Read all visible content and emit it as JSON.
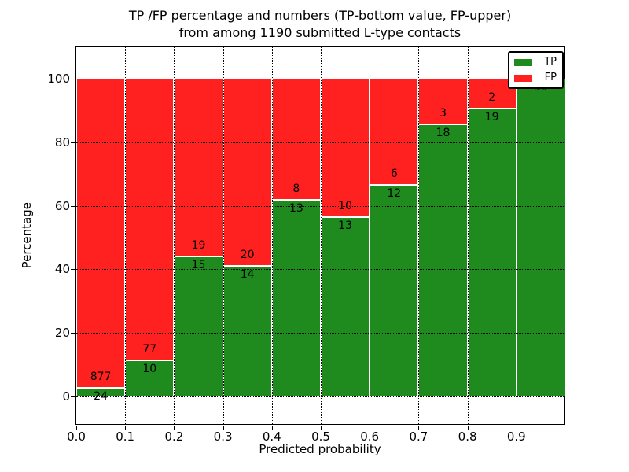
{
  "figure": {
    "title_line1": "TP /FP percentage and numbers (TP-bottom value, FP-upper)",
    "title_line2": "from among 1190 submitted L-type contacts",
    "background_color": "#ffffff"
  },
  "chart_data": {
    "type": "bar",
    "stacked": true,
    "normalized_to_percent": true,
    "title": "TP /FP percentage and numbers (TP-bottom value, FP-upper)\nfrom among 1190 submitted L-type contacts",
    "xlabel": "Predicted probability",
    "ylabel": "Percentage",
    "total_submitted": 1190,
    "bin_width": 0.1,
    "x_tick_labels": [
      "0.0",
      "0.1",
      "0.2",
      "0.3",
      "0.4",
      "0.5",
      "0.6",
      "0.7",
      "0.8",
      "0.9"
    ],
    "y_tick_values": [
      0,
      20,
      40,
      60,
      80,
      100
    ],
    "xlim": [
      0.0,
      1.0
    ],
    "ylim": [
      -9,
      110
    ],
    "grid": true,
    "grid_style": "dotted",
    "legend_position": "upper right",
    "series": [
      {
        "name": "TP",
        "color": "#1f8b1f",
        "counts": [
          24,
          10,
          15,
          14,
          13,
          13,
          12,
          18,
          19,
          30
        ]
      },
      {
        "name": "FP",
        "color": "#ff2020",
        "counts": [
          877,
          77,
          19,
          20,
          8,
          10,
          6,
          3,
          2,
          0
        ]
      }
    ],
    "tp_percent_of_bin": [
      2.7,
      11.5,
      44.1,
      41.2,
      61.9,
      56.5,
      66.7,
      85.7,
      90.5,
      100.0
    ],
    "bar_total_percent": 100
  },
  "colors": {
    "tp": "#1f8b1f",
    "fp": "#ff2020",
    "axis": "#000000",
    "grid": "#000000",
    "bar_edge": "#ffffff",
    "legend_bg": "#ffffff"
  }
}
